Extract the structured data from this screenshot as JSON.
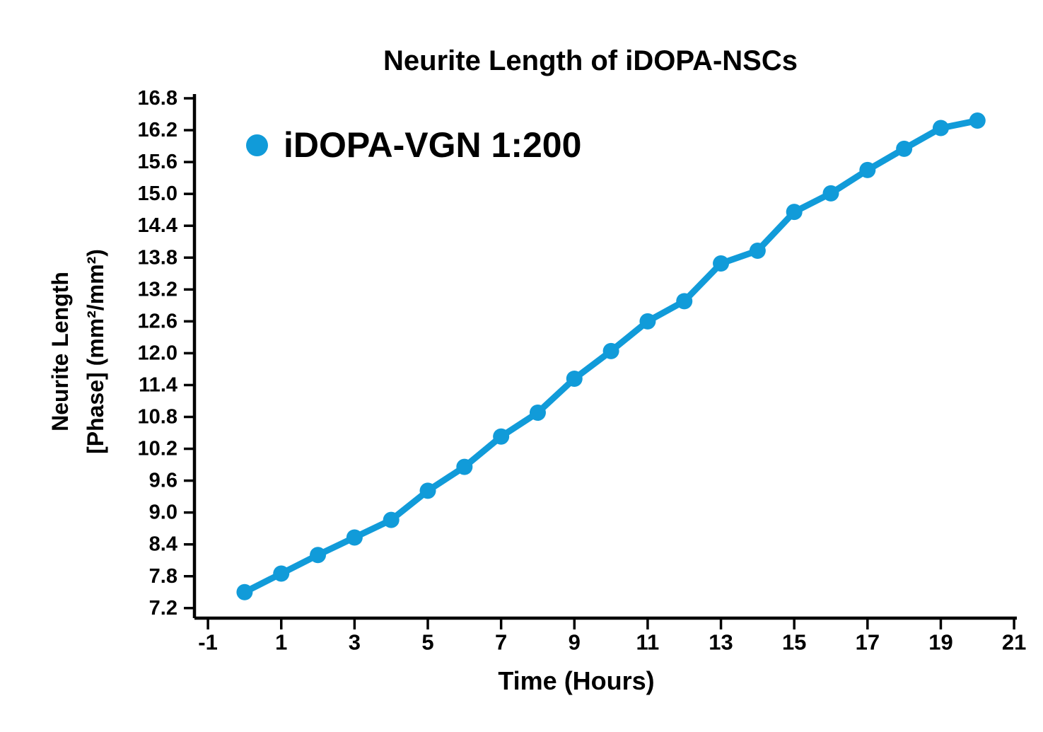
{
  "title": "Neurite Length of iDOPA-NSCs",
  "legend": {
    "label": "iDOPA-VGN 1:200",
    "marker_color": "#119BD9"
  },
  "x_axis": {
    "label": "Time (Hours)",
    "ticks": [
      -1,
      1,
      3,
      5,
      7,
      9,
      11,
      13,
      15,
      17,
      19,
      21
    ]
  },
  "y_axis": {
    "label_lines": [
      "Neurite Length",
      "[Phase] (mm²/mm²)"
    ],
    "ticks": [
      "16.8",
      "16.2",
      "15.6",
      "15.0",
      "14.4",
      "13.8",
      "13.2",
      "12.6",
      "12.0",
      "11.4",
      "10.8",
      "10.2",
      "9.6",
      "9.0",
      "8.4",
      "7.8",
      "7.2"
    ]
  },
  "chart_data": {
    "type": "line",
    "title": "Neurite Length of iDOPA-NSCs",
    "xlabel": "Time (Hours)",
    "ylabel": "Neurite Length [Phase] (mm²/mm²)",
    "x": [
      0,
      1,
      2,
      3,
      4,
      5,
      6,
      7,
      8,
      9,
      10,
      11,
      12,
      13,
      14,
      15,
      16,
      17,
      18,
      19,
      20
    ],
    "series": [
      {
        "name": "iDOPA-VGN 1:200",
        "color": "#119BD9",
        "marker": "circle",
        "values": [
          7.5,
          7.85,
          8.2,
          8.53,
          8.86,
          9.41,
          9.86,
          10.43,
          10.88,
          11.52,
          12.04,
          12.6,
          12.98,
          13.69,
          13.93,
          14.66,
          15.01,
          15.45,
          15.85,
          16.24,
          16.38
        ]
      }
    ],
    "xlim": [
      -1.4,
      21.1
    ],
    "ylim": [
      7.0,
      16.9
    ],
    "x_ticks": [
      -1,
      1,
      3,
      5,
      7,
      9,
      11,
      13,
      15,
      17,
      19,
      21
    ],
    "y_ticks": [
      16.8,
      16.2,
      15.6,
      15.0,
      14.4,
      13.8,
      13.2,
      12.6,
      12.0,
      11.4,
      10.8,
      10.2,
      9.6,
      9.0,
      8.4,
      7.8,
      7.2
    ],
    "grid": false,
    "legend_position": "upper-left-inside",
    "background": "#ffffff",
    "text_color": "#000000"
  }
}
